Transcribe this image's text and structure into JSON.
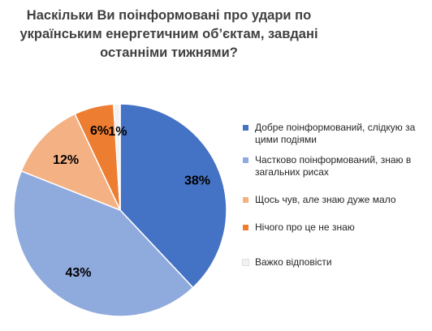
{
  "title_lines": [
    "Наскільки Ви поінформовані про удари по",
    "українським енергетичним об’єктам, завдані",
    "останніми тижнями?"
  ],
  "colors": [
    "#4472C4",
    "#8FAADC",
    "#F4B183",
    "#ED7D31",
    "#F2F2F2"
  ],
  "chart_data": {
    "type": "pie",
    "title": "Наскільки Ви поінформовані про удари по українським енергетичним об’єктам, завдані останніми тижнями?",
    "labels": [
      "Добре поінформований, слідкую за цими подіями",
      "Частково поінформований, знаю в загальних рисах",
      "Щось чув, але знаю дуже мало",
      "Нічого про це не знаю",
      "Важко відповісти"
    ],
    "values": [
      38,
      43,
      12,
      6,
      1
    ],
    "data_labels": [
      "38%",
      "43%",
      "12%",
      "6%",
      "1%"
    ],
    "legend_position": "right"
  }
}
